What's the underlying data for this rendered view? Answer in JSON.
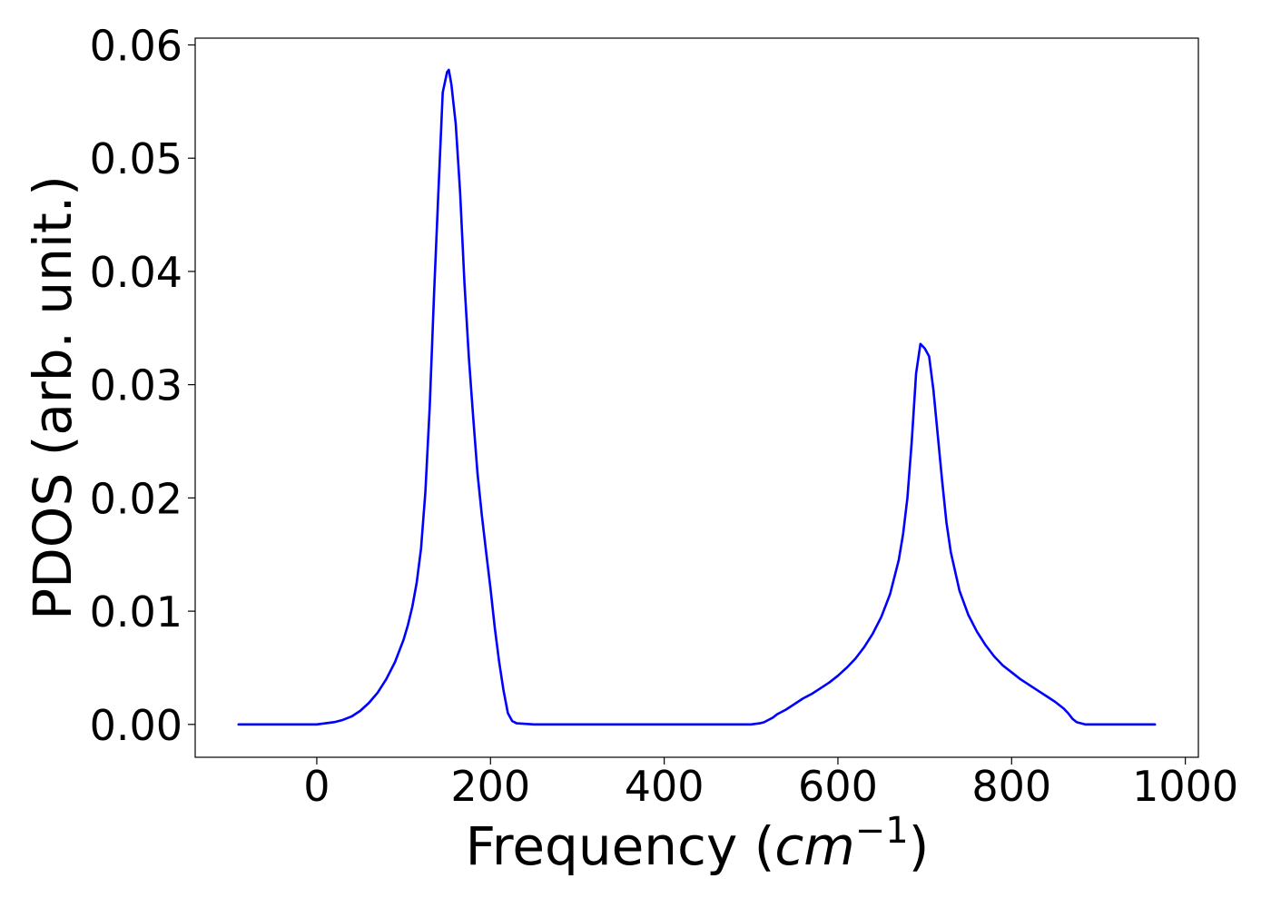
{
  "chart_data": {
    "type": "line",
    "title": "",
    "xlabel": {
      "prefix": "Frequency (",
      "unit_base": "cm",
      "unit_exponent": "−1",
      "suffix": ")"
    },
    "ylabel": "PDOS (arb. unit.)",
    "xlim": [
      -140,
      1015
    ],
    "ylim": [
      -0.0029,
      0.0606
    ],
    "x_ticks": [
      0,
      200,
      400,
      600,
      800,
      1000
    ],
    "x_tick_labels": [
      "0",
      "200",
      "400",
      "600",
      "800",
      "1000"
    ],
    "y_ticks": [
      0.0,
      0.01,
      0.02,
      0.03,
      0.04,
      0.05,
      0.06
    ],
    "y_tick_labels": [
      "0.00",
      "0.01",
      "0.02",
      "0.03",
      "0.04",
      "0.05",
      "0.06"
    ],
    "grid": false,
    "legend": "none",
    "series": [
      {
        "color": "#0000ff",
        "x": [
          -90,
          -50,
          0,
          10,
          20,
          30,
          40,
          50,
          60,
          70,
          80,
          90,
          100,
          105,
          110,
          115,
          120,
          125,
          130,
          135,
          140,
          145,
          150,
          152,
          155,
          160,
          165,
          170,
          175,
          180,
          185,
          190,
          195,
          200,
          205,
          210,
          215,
          220,
          225,
          230,
          250,
          300,
          400,
          500,
          510,
          515,
          520,
          525,
          530,
          540,
          550,
          560,
          570,
          580,
          590,
          600,
          610,
          620,
          630,
          640,
          650,
          660,
          670,
          675,
          680,
          685,
          690,
          695,
          700,
          705,
          710,
          715,
          720,
          725,
          730,
          740,
          750,
          760,
          770,
          780,
          790,
          800,
          810,
          820,
          830,
          840,
          850,
          860,
          865,
          870,
          875,
          880,
          885,
          890,
          900,
          920,
          965
        ],
        "y": [
          0.0,
          0.0,
          0.0,
          0.0001,
          0.0002,
          0.0004,
          0.0007,
          0.0012,
          0.0019,
          0.0028,
          0.004,
          0.0055,
          0.0075,
          0.0088,
          0.0104,
          0.0125,
          0.0155,
          0.0205,
          0.028,
          0.038,
          0.047,
          0.0558,
          0.0576,
          0.0578,
          0.0565,
          0.053,
          0.047,
          0.039,
          0.0325,
          0.0272,
          0.0222,
          0.0185,
          0.0152,
          0.012,
          0.0085,
          0.0055,
          0.003,
          0.001,
          0.0003,
          0.0001,
          0.0,
          0.0,
          0.0,
          0.0,
          0.0001,
          0.0002,
          0.0004,
          0.0006,
          0.0009,
          0.0013,
          0.0018,
          0.0023,
          0.0027,
          0.0032,
          0.0037,
          0.0043,
          0.005,
          0.0058,
          0.0068,
          0.008,
          0.0095,
          0.0115,
          0.0145,
          0.0168,
          0.02,
          0.025,
          0.031,
          0.0336,
          0.0332,
          0.0325,
          0.0295,
          0.0255,
          0.0215,
          0.0178,
          0.0152,
          0.0118,
          0.0097,
          0.0082,
          0.007,
          0.006,
          0.0052,
          0.0046,
          0.004,
          0.0035,
          0.003,
          0.0025,
          0.002,
          0.0014,
          0.001,
          0.0005,
          0.0002,
          0.0001,
          0.0,
          0.0,
          0.0,
          0.0,
          0.0
        ]
      }
    ]
  }
}
